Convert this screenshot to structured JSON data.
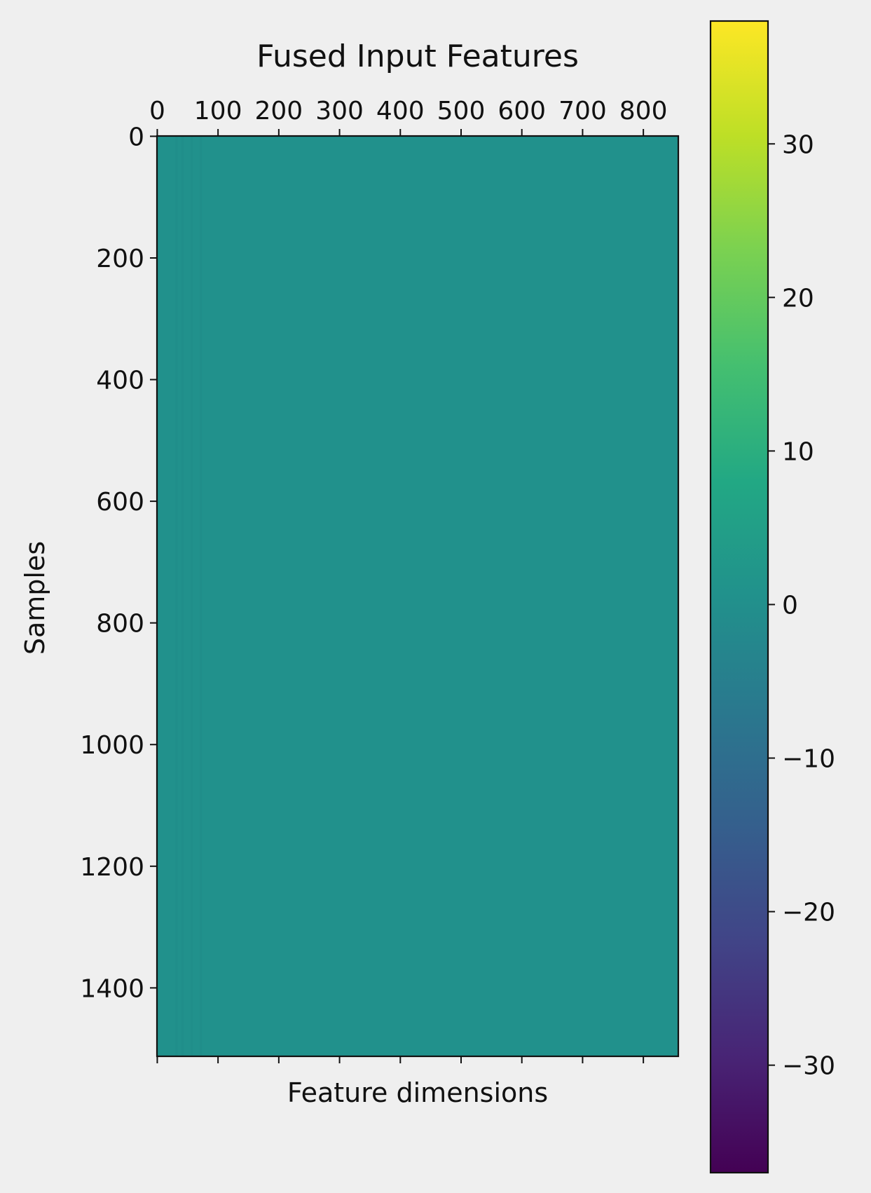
{
  "chart_data": {
    "type": "heatmap",
    "title": "Fused Input Features",
    "xlabel": "Feature dimensions",
    "ylabel": "Samples",
    "x_axis_position": "top",
    "x_ticks": [
      0,
      100,
      200,
      300,
      400,
      500,
      600,
      700,
      800
    ],
    "y_ticks": [
      0,
      200,
      400,
      600,
      800,
      1000,
      1200,
      1400
    ],
    "n_features": 858,
    "n_samples": 1513,
    "xlim": [
      -0.5,
      857.5
    ],
    "ylim": [
      1512.5,
      -0.5
    ],
    "cell_value_estimate": 0,
    "stripe_note_columns": [
      30,
      40,
      55,
      70
    ],
    "colorbar": {
      "colormap": "viridis",
      "vmin": -37,
      "vmax": 38,
      "ticks": [
        30,
        20,
        10,
        0,
        -10,
        -20,
        -30
      ],
      "tick_labels": [
        "30",
        "20",
        "10",
        "0",
        "−10",
        "−20",
        "−30"
      ]
    },
    "colors": {
      "background": "#efefef",
      "heatmap_fill": "#21918c"
    }
  }
}
